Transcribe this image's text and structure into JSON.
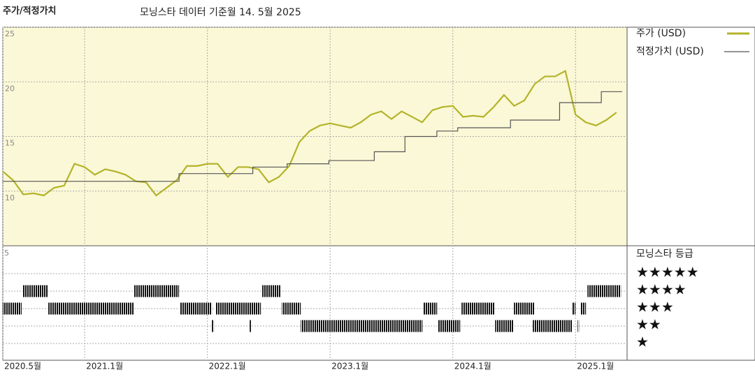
{
  "chart_data": {
    "type": "line",
    "title": "주가/적정가치",
    "subtitle": "모닝스타 데이터 기준월 14. 5월 2025",
    "xlim": [
      2020.333,
      2025.38
    ],
    "xticks": [
      {
        "value": 2020.333,
        "label": "2020.5월"
      },
      {
        "value": 2021.0,
        "label": "2021.1월"
      },
      {
        "value": 2022.0,
        "label": "2022.1월"
      },
      {
        "value": 2023.0,
        "label": "2023.1월"
      },
      {
        "value": 2024.0,
        "label": "2024.1월"
      },
      {
        "value": 2025.0,
        "label": "2025.1월"
      }
    ],
    "ylim": [
      5,
      25
    ],
    "yticks": [
      10,
      15,
      20,
      25
    ],
    "grid": true,
    "series": [
      {
        "name": "주가 (USD)",
        "color": "#b3b32a",
        "step": false,
        "x": [
          2020.333,
          2020.417,
          2020.5,
          2020.583,
          2020.667,
          2020.75,
          2020.833,
          2020.917,
          2021.0,
          2021.083,
          2021.167,
          2021.25,
          2021.333,
          2021.417,
          2021.5,
          2021.583,
          2021.667,
          2021.75,
          2021.833,
          2021.917,
          2022.0,
          2022.083,
          2022.167,
          2022.25,
          2022.333,
          2022.417,
          2022.5,
          2022.583,
          2022.667,
          2022.75,
          2022.833,
          2022.917,
          2023.0,
          2023.083,
          2023.167,
          2023.25,
          2023.333,
          2023.417,
          2023.5,
          2023.583,
          2023.667,
          2023.75,
          2023.833,
          2023.917,
          2024.0,
          2024.083,
          2024.167,
          2024.25,
          2024.333,
          2024.417,
          2024.5,
          2024.583,
          2024.667,
          2024.75,
          2024.833,
          2024.917,
          2025.0,
          2025.083,
          2025.167,
          2025.25,
          2025.333
        ],
        "values": [
          11.8,
          11.0,
          9.7,
          9.8,
          9.6,
          10.3,
          10.5,
          12.5,
          12.2,
          11.5,
          12.0,
          11.8,
          11.5,
          10.9,
          10.8,
          9.6,
          10.3,
          11.0,
          12.3,
          12.3,
          12.5,
          12.5,
          11.3,
          12.2,
          12.2,
          12.0,
          10.8,
          11.3,
          12.3,
          14.5,
          15.5,
          16.0,
          16.2,
          16.0,
          15.8,
          16.3,
          17.0,
          17.3,
          16.6,
          17.3,
          16.8,
          16.3,
          17.4,
          17.7,
          17.8,
          16.8,
          16.9,
          16.8,
          17.7,
          18.8,
          17.8,
          18.3,
          19.8,
          20.5,
          20.5,
          21.0,
          17.0,
          16.3,
          16.0,
          16.5,
          17.2
        ]
      },
      {
        "name": "적정가치 (USD)",
        "color": "#555555",
        "step": true,
        "x": [
          2020.333,
          2021.769,
          2022.37,
          2022.65,
          2022.99,
          2023.36,
          2023.61,
          2023.87,
          2024.04,
          2024.47,
          2024.87,
          2025.21,
          2025.38
        ],
        "values": [
          10.9,
          11.6,
          12.2,
          12.5,
          12.8,
          13.6,
          15.0,
          15.5,
          15.8,
          16.5,
          18.1,
          19.1,
          19.1
        ]
      }
    ],
    "rating": {
      "title": "모닝스타 등급",
      "axis_label": "5",
      "star_labels": [
        "★★★★★",
        "★★★★",
        "★★★",
        "★★",
        "★"
      ],
      "segments": [
        {
          "start": 2020.333,
          "end": 2020.487,
          "stars": 3
        },
        {
          "start": 2020.498,
          "end": 2020.698,
          "stars": 4
        },
        {
          "start": 2020.704,
          "end": 2021.399,
          "stars": 3
        },
        {
          "start": 2021.404,
          "end": 2021.769,
          "stars": 4
        },
        {
          "start": 2021.775,
          "end": 2022.037,
          "stars": 3
        },
        {
          "start": 2022.037,
          "end": 2022.054,
          "stars": 2
        },
        {
          "start": 2022.065,
          "end": 2022.436,
          "stars": 3
        },
        {
          "start": 2022.345,
          "end": 2022.35,
          "stars": 2
        },
        {
          "start": 2022.447,
          "end": 2022.595,
          "stars": 4
        },
        {
          "start": 2022.607,
          "end": 2022.761,
          "stars": 3
        },
        {
          "start": 2022.761,
          "end": 2023.752,
          "stars": 2
        },
        {
          "start": 2023.758,
          "end": 2023.872,
          "stars": 3
        },
        {
          "start": 2023.877,
          "end": 2024.06,
          "stars": 2
        },
        {
          "start": 2024.071,
          "end": 2024.339,
          "stars": 3
        },
        {
          "start": 2024.345,
          "end": 2024.493,
          "stars": 2
        },
        {
          "start": 2024.498,
          "end": 2024.664,
          "stars": 3
        },
        {
          "start": 2024.652,
          "end": 2024.971,
          "stars": 2
        },
        {
          "start": 2024.971,
          "end": 2024.999,
          "stars": 3
        },
        {
          "start": 2025.017,
          "end": 2025.028,
          "stars": 2
        },
        {
          "start": 2025.039,
          "end": 2025.085,
          "stars": 3
        },
        {
          "start": 2025.097,
          "end": 2025.37,
          "stars": 4
        }
      ]
    }
  }
}
